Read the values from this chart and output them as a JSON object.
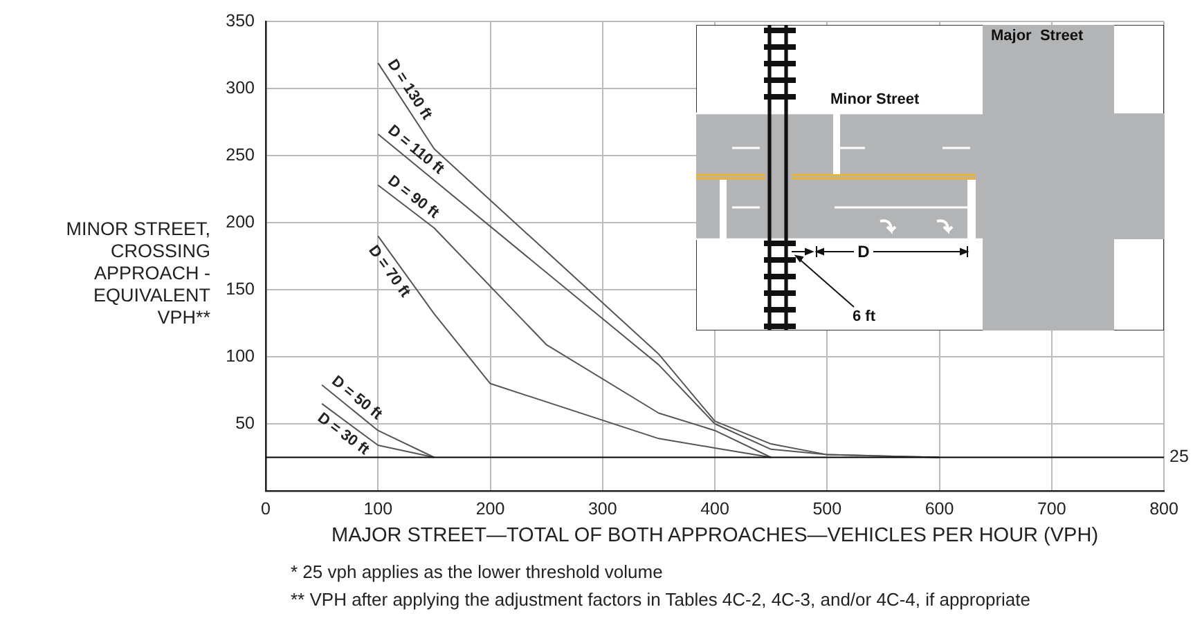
{
  "chart_data": {
    "type": "line",
    "xlabel": "MAJOR STREET—TOTAL OF BOTH APPROACHES—VEHICLES PER HOUR (VPH)",
    "ylabel": "MINOR STREET, CROSSING APPROACH - EQUIVALENT VPH**",
    "series": [
      {
        "name": "D = 130 ft",
        "color": "#555555",
        "x": [
          100,
          150,
          350,
          400,
          450,
          500,
          600
        ],
        "values": [
          319,
          255,
          102,
          52,
          35,
          27,
          25
        ]
      },
      {
        "name": "D = 110 ft",
        "color": "#555555",
        "x": [
          100,
          350,
          400,
          450,
          500,
          600
        ],
        "values": [
          266,
          94,
          50,
          31,
          27,
          25
        ]
      },
      {
        "name": "D = 90 ft",
        "color": "#555555",
        "x": [
          100,
          150,
          250,
          350,
          400,
          450
        ],
        "values": [
          228,
          196,
          109,
          58,
          45,
          25
        ]
      },
      {
        "name": "D = 70 ft",
        "color": "#555555",
        "x": [
          100,
          150,
          200,
          350,
          400,
          450
        ],
        "values": [
          190,
          132,
          80,
          39,
          32,
          25
        ]
      },
      {
        "name": "D = 50 ft",
        "color": "#555555",
        "x": [
          50,
          100,
          150
        ],
        "values": [
          79,
          45,
          25
        ]
      },
      {
        "name": "D = 30 ft",
        "color": "#555555",
        "x": [
          50,
          100,
          150
        ],
        "values": [
          65,
          34,
          25
        ]
      }
    ],
    "xlim": [
      0,
      800
    ],
    "xticks": [
      0,
      100,
      200,
      300,
      400,
      500,
      600,
      700,
      800
    ],
    "ylim": [
      0,
      350
    ],
    "yticks": [
      50,
      100,
      150,
      200,
      250,
      300,
      350
    ],
    "ref_lines": [
      {
        "axis": "y",
        "value": 25,
        "label": "25",
        "color": "#000000"
      }
    ],
    "annotations": [
      "Major  Street",
      "Minor Street",
      "D",
      "6 ft",
      "* 25 vph applies as the lower threshold volume",
      "** VPH after applying the adjustment factors in Tables 4C-2, 4C-3, and/or 4C-4, if appropriate"
    ],
    "grid": true,
    "legend": false,
    "marker": "none",
    "line_style": "solid"
  }
}
